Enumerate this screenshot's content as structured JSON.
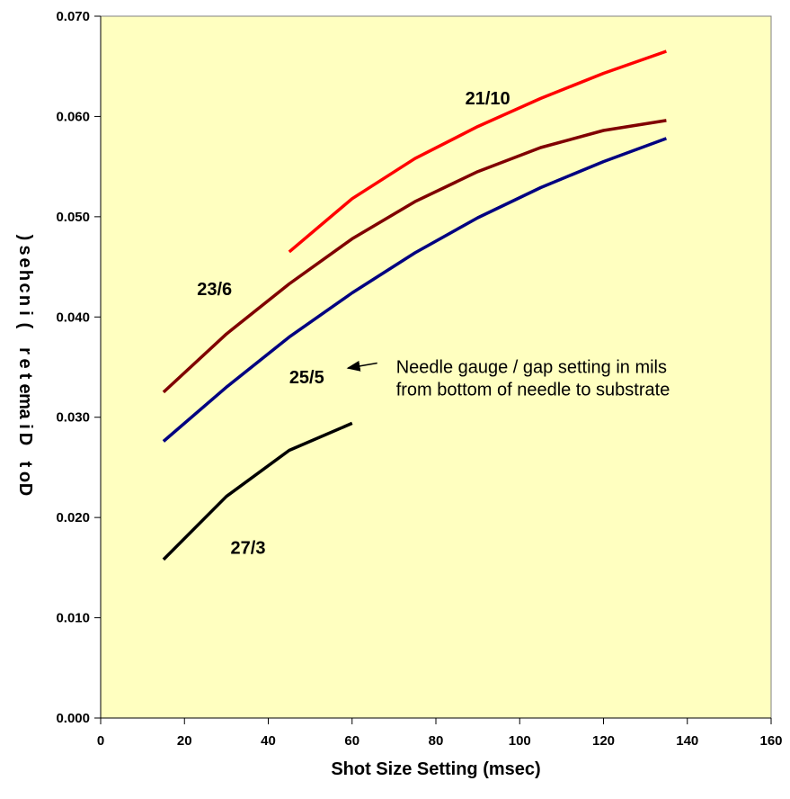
{
  "chart_data": {
    "type": "line",
    "xlabel": "Shot Size Setting (msec)",
    "ylabel": "Dot Diameter (inches)",
    "ylabel_as_printed": ")sehcni( retemaiD toD",
    "xlim": [
      0,
      160
    ],
    "ylim": [
      0.0,
      0.07
    ],
    "x_ticks": [
      "0",
      "20",
      "40",
      "60",
      "80",
      "100",
      "120",
      "140",
      "160"
    ],
    "y_ticks": [
      "0.000",
      "0.010",
      "0.020",
      "0.030",
      "0.040",
      "0.050",
      "0.060",
      "0.070"
    ],
    "grid": false,
    "plot_background": "#FFFFC0",
    "series": [
      {
        "name": "21/10",
        "color": "#FF0000",
        "x": [
          45,
          60,
          75,
          90,
          105,
          120,
          135
        ],
        "y": [
          0.0465,
          0.0518,
          0.0558,
          0.059,
          0.0618,
          0.0643,
          0.0665
        ]
      },
      {
        "name": "23/6",
        "color": "#800000",
        "x": [
          15,
          30,
          45,
          60,
          75,
          90,
          105,
          120,
          135
        ],
        "y": [
          0.0325,
          0.0383,
          0.0433,
          0.0478,
          0.0515,
          0.0545,
          0.0569,
          0.0586,
          0.0596
        ]
      },
      {
        "name": "25/5",
        "color": "#000080",
        "x": [
          15,
          30,
          45,
          60,
          75,
          90,
          105,
          120,
          135
        ],
        "y": [
          0.0276,
          0.033,
          0.038,
          0.0424,
          0.0464,
          0.0499,
          0.0529,
          0.0555,
          0.0578
        ]
      },
      {
        "name": "27/3",
        "color": "#000000",
        "x": [
          15,
          30,
          45,
          60
        ],
        "y": [
          0.0158,
          0.0221,
          0.0267,
          0.0294
        ]
      }
    ],
    "series_labels": [
      {
        "text": "21/10",
        "x": 87,
        "y": 0.0612
      },
      {
        "text": "23/6",
        "x": 23,
        "y": 0.0422
      },
      {
        "text": "25/5",
        "x": 45,
        "y": 0.0334
      },
      {
        "text": "27/3",
        "x": 31,
        "y": 0.0164
      }
    ],
    "annotation": {
      "lines": [
        "Needle gauge / gap setting in mils",
        "from bottom of needle to substrate"
      ],
      "arrow_from": {
        "x": 66,
        "y": 0.0354
      },
      "arrow_to": {
        "x": 59,
        "y": 0.0349
      },
      "text_x": 70.5,
      "text_y": 0.0344
    }
  }
}
